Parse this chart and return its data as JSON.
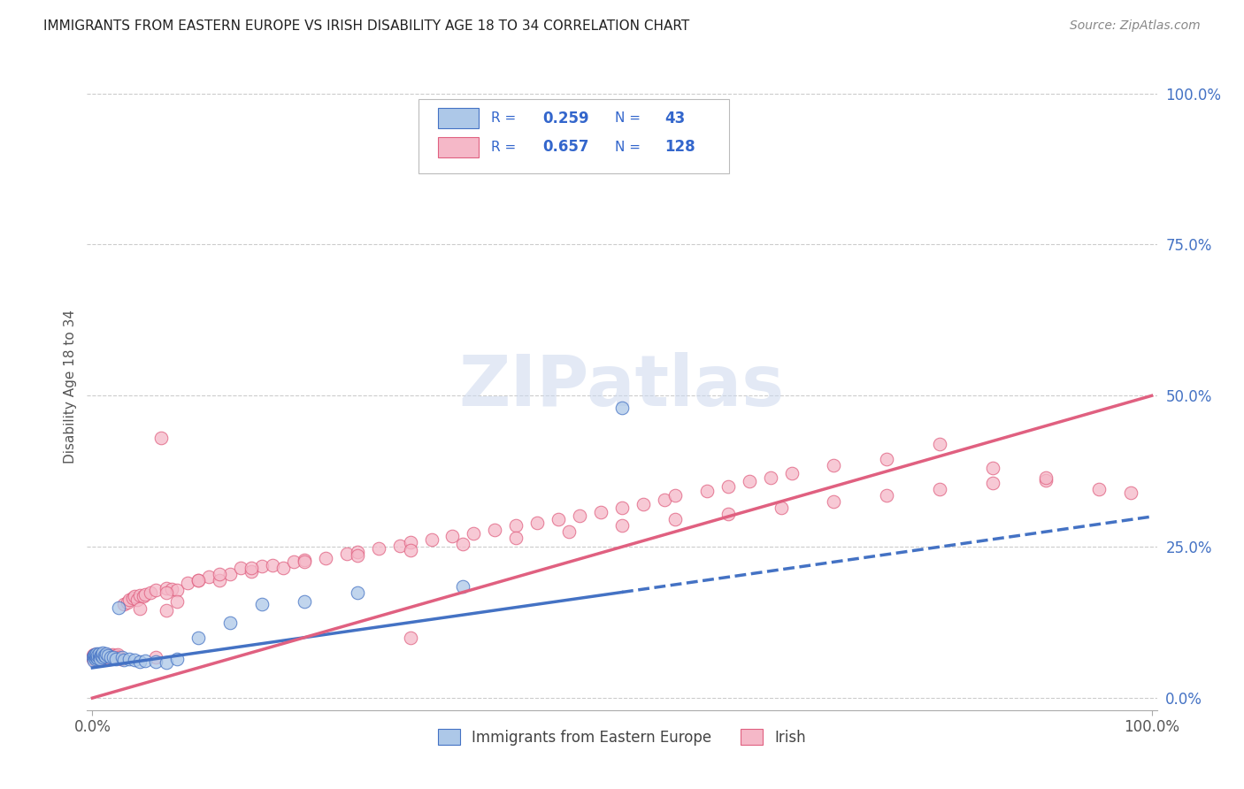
{
  "title": "IMMIGRANTS FROM EASTERN EUROPE VS IRISH DISABILITY AGE 18 TO 34 CORRELATION CHART",
  "source": "Source: ZipAtlas.com",
  "ylabel": "Disability Age 18 to 34",
  "legend_label1": "Immigrants from Eastern Europe",
  "legend_label2": "Irish",
  "R1": 0.259,
  "N1": 43,
  "R2": 0.657,
  "N2": 128,
  "color_blue": "#adc8e8",
  "color_pink": "#f5b8c8",
  "line_blue": "#4472c4",
  "line_pink": "#e06080",
  "watermark_text": "ZIPatlas",
  "blue_line_intercept": 0.05,
  "blue_line_slope": 0.25,
  "pink_line_intercept": 0.0,
  "pink_line_slope": 0.5,
  "blue_scatter_x": [
    0.0005,
    0.001,
    0.001,
    0.002,
    0.002,
    0.003,
    0.003,
    0.004,
    0.004,
    0.005,
    0.005,
    0.006,
    0.006,
    0.007,
    0.007,
    0.008,
    0.009,
    0.01,
    0.01,
    0.011,
    0.012,
    0.013,
    0.015,
    0.017,
    0.02,
    0.022,
    0.025,
    0.028,
    0.03,
    0.035,
    0.04,
    0.045,
    0.05,
    0.06,
    0.07,
    0.08,
    0.1,
    0.13,
    0.16,
    0.2,
    0.25,
    0.35,
    0.5
  ],
  "blue_scatter_y": [
    0.068,
    0.07,
    0.062,
    0.067,
    0.072,
    0.065,
    0.07,
    0.068,
    0.073,
    0.066,
    0.071,
    0.069,
    0.074,
    0.067,
    0.065,
    0.07,
    0.072,
    0.068,
    0.075,
    0.07,
    0.069,
    0.073,
    0.07,
    0.068,
    0.068,
    0.065,
    0.15,
    0.068,
    0.063,
    0.065,
    0.063,
    0.06,
    0.062,
    0.06,
    0.058,
    0.065,
    0.1,
    0.125,
    0.155,
    0.16,
    0.175,
    0.185,
    0.48
  ],
  "pink_scatter_x": [
    0.0003,
    0.0005,
    0.0005,
    0.001,
    0.001,
    0.001,
    0.002,
    0.002,
    0.002,
    0.003,
    0.003,
    0.003,
    0.004,
    0.004,
    0.004,
    0.005,
    0.005,
    0.005,
    0.006,
    0.006,
    0.006,
    0.007,
    0.007,
    0.007,
    0.008,
    0.008,
    0.009,
    0.009,
    0.01,
    0.01,
    0.011,
    0.011,
    0.012,
    0.012,
    0.013,
    0.014,
    0.015,
    0.016,
    0.017,
    0.018,
    0.019,
    0.02,
    0.022,
    0.024,
    0.025,
    0.027,
    0.03,
    0.033,
    0.035,
    0.038,
    0.04,
    0.042,
    0.045,
    0.048,
    0.05,
    0.055,
    0.06,
    0.065,
    0.07,
    0.075,
    0.08,
    0.09,
    0.1,
    0.11,
    0.12,
    0.13,
    0.14,
    0.15,
    0.16,
    0.17,
    0.18,
    0.19,
    0.2,
    0.22,
    0.24,
    0.25,
    0.27,
    0.29,
    0.3,
    0.32,
    0.34,
    0.36,
    0.38,
    0.4,
    0.42,
    0.44,
    0.46,
    0.48,
    0.5,
    0.52,
    0.54,
    0.55,
    0.58,
    0.6,
    0.62,
    0.64,
    0.66,
    0.7,
    0.75,
    0.8,
    0.85,
    0.9,
    0.95,
    0.98,
    0.045,
    0.06,
    0.07,
    0.08,
    0.3,
    0.07,
    0.1,
    0.12,
    0.15,
    0.2,
    0.25,
    0.3,
    0.35,
    0.4,
    0.45,
    0.5,
    0.55,
    0.6,
    0.65,
    0.7,
    0.75,
    0.8,
    0.85,
    0.9
  ],
  "pink_scatter_y": [
    0.068,
    0.07,
    0.065,
    0.068,
    0.072,
    0.065,
    0.07,
    0.068,
    0.072,
    0.068,
    0.065,
    0.07,
    0.072,
    0.068,
    0.065,
    0.07,
    0.068,
    0.072,
    0.068,
    0.065,
    0.07,
    0.072,
    0.068,
    0.065,
    0.07,
    0.068,
    0.072,
    0.068,
    0.07,
    0.065,
    0.068,
    0.072,
    0.068,
    0.065,
    0.068,
    0.072,
    0.068,
    0.065,
    0.07,
    0.068,
    0.072,
    0.068,
    0.07,
    0.072,
    0.068,
    0.065,
    0.155,
    0.158,
    0.162,
    0.165,
    0.168,
    0.163,
    0.17,
    0.168,
    0.172,
    0.175,
    0.178,
    0.43,
    0.182,
    0.18,
    0.178,
    0.19,
    0.195,
    0.2,
    0.195,
    0.205,
    0.215,
    0.21,
    0.218,
    0.22,
    0.215,
    0.225,
    0.228,
    0.232,
    0.238,
    0.242,
    0.248,
    0.252,
    0.258,
    0.262,
    0.268,
    0.272,
    0.278,
    0.285,
    0.29,
    0.295,
    0.302,
    0.308,
    0.315,
    0.32,
    0.328,
    0.335,
    0.342,
    0.35,
    0.358,
    0.365,
    0.372,
    0.385,
    0.395,
    0.42,
    0.38,
    0.36,
    0.345,
    0.34,
    0.148,
    0.068,
    0.145,
    0.16,
    0.1,
    0.175,
    0.195,
    0.205,
    0.215,
    0.225,
    0.235,
    0.245,
    0.255,
    0.265,
    0.275,
    0.285,
    0.295,
    0.305,
    0.315,
    0.325,
    0.335,
    0.345,
    0.355,
    0.365
  ]
}
